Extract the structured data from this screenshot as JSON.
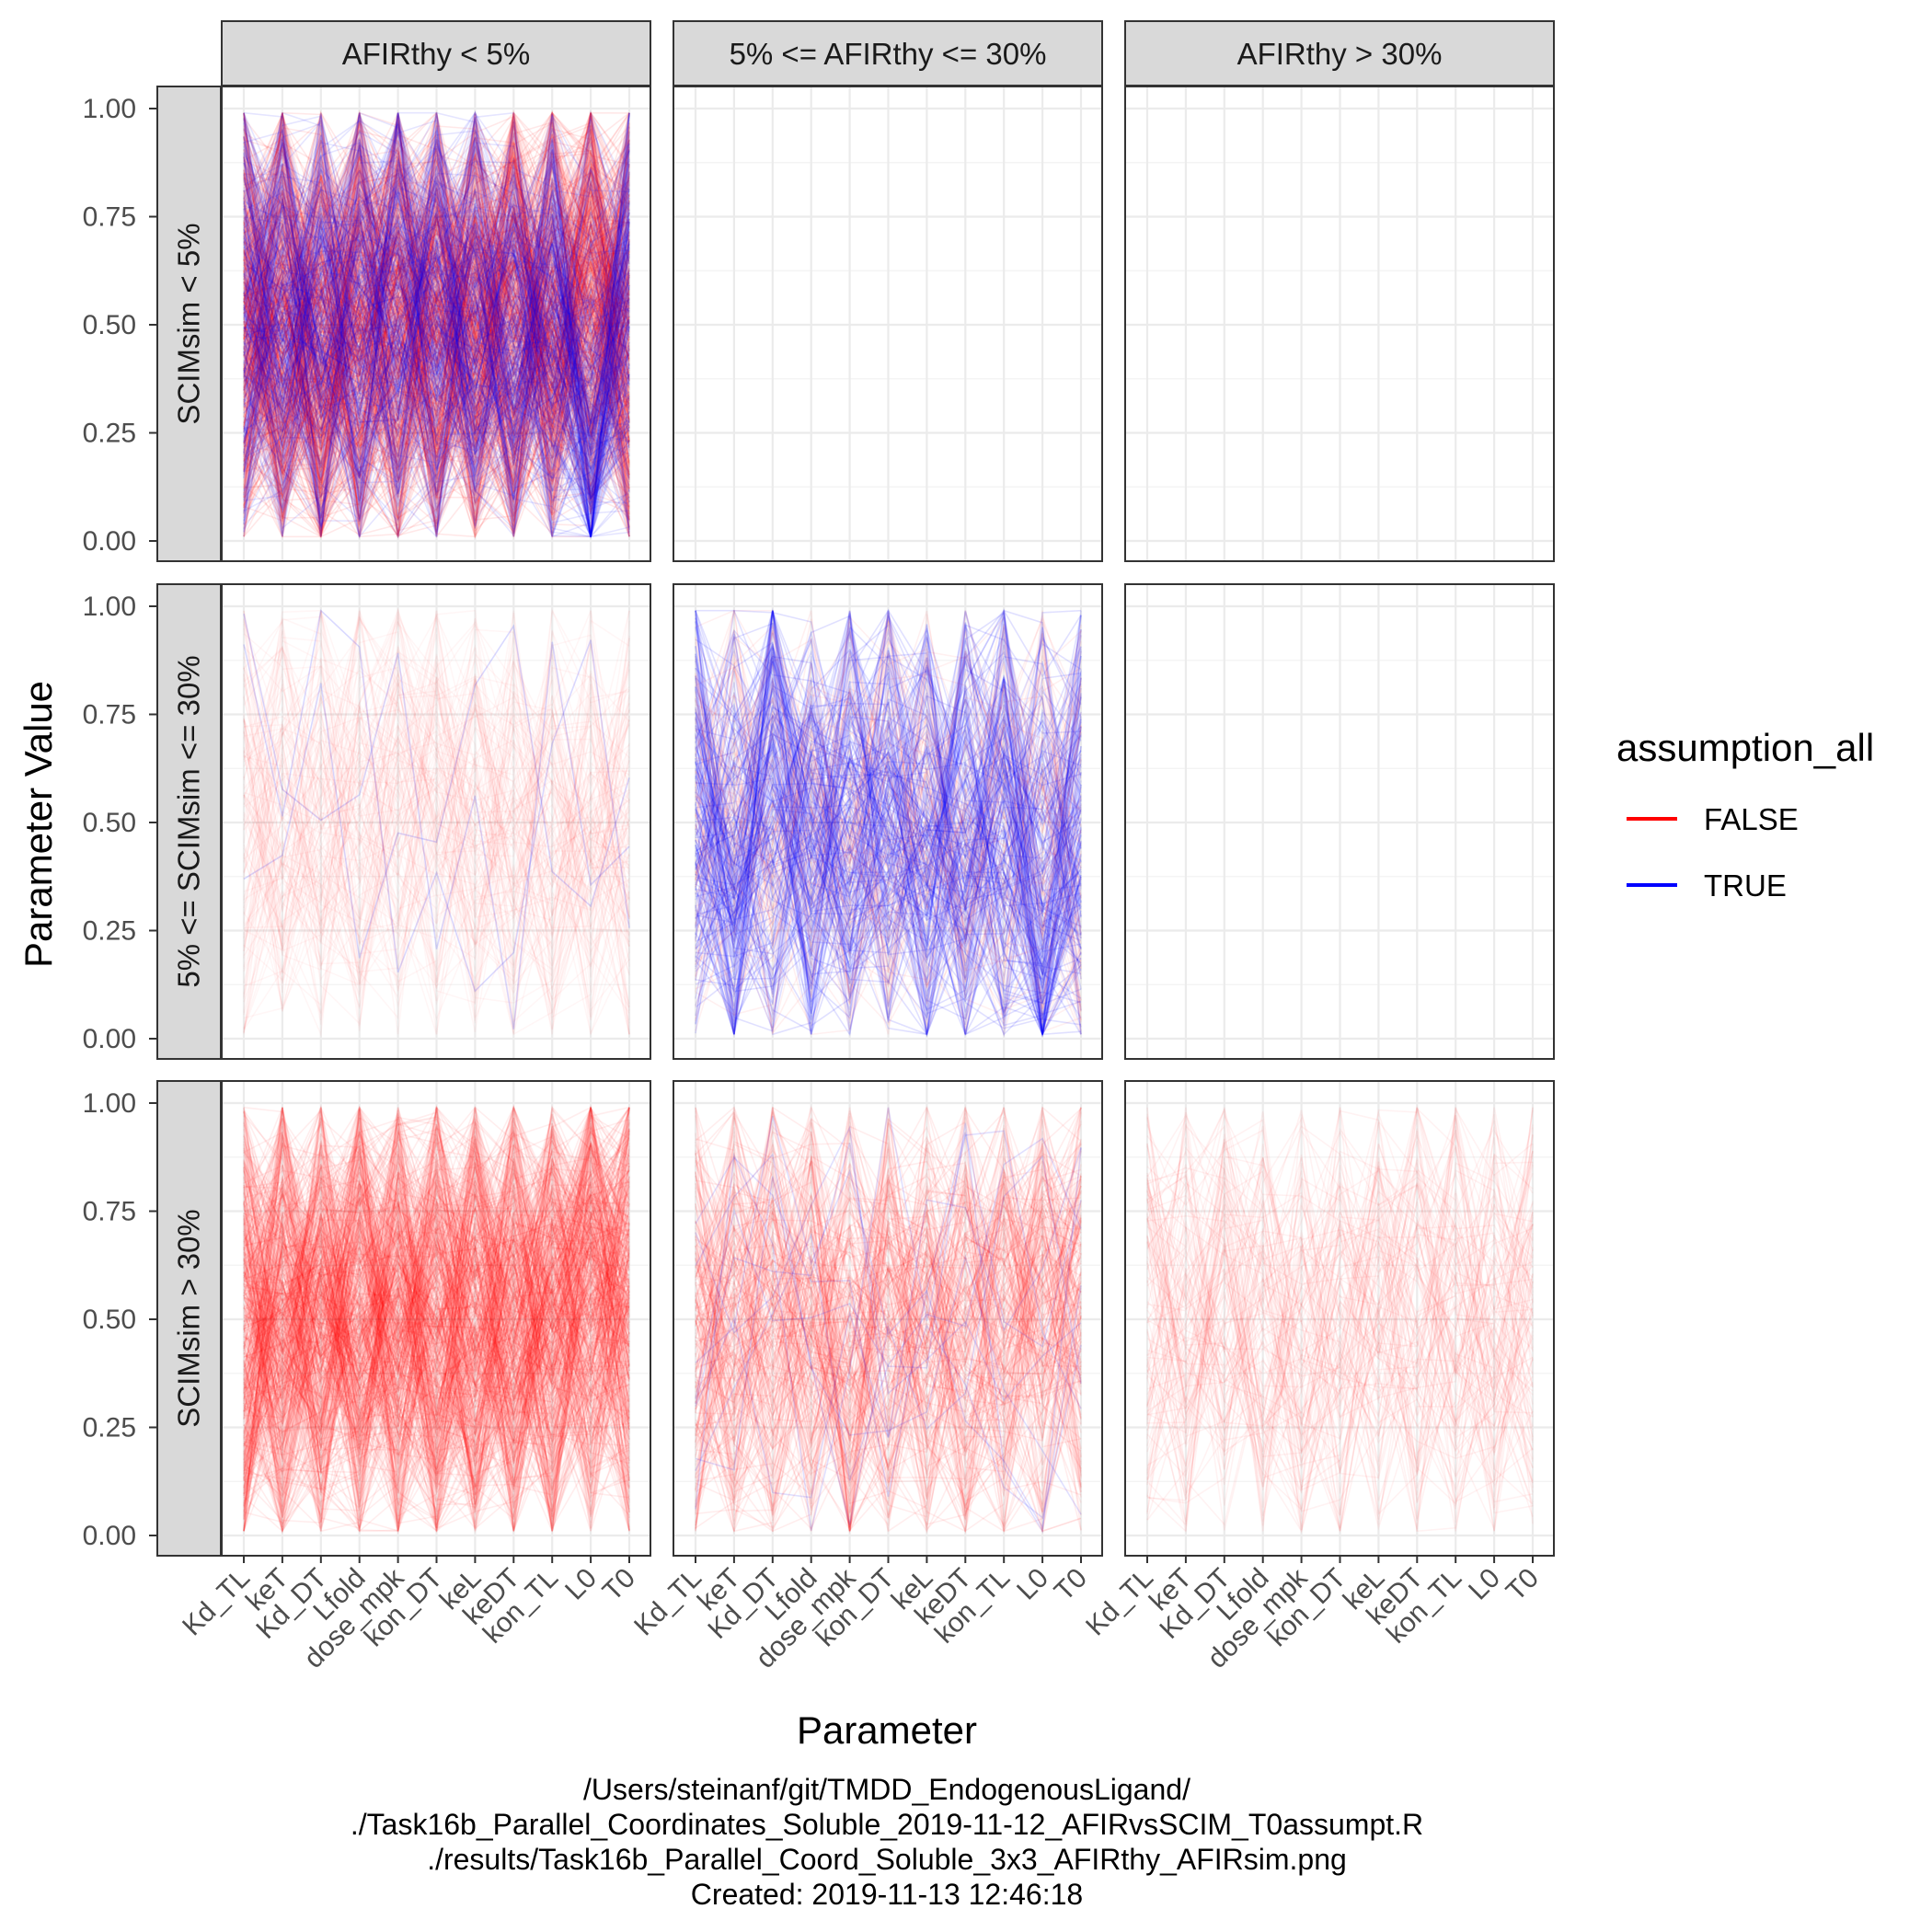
{
  "chart_data": {
    "type": "parallel_coordinates",
    "facet_cols": [
      "AFIRthy < 5%",
      "5% <= AFIRthy <= 30%",
      "AFIRthy > 30%"
    ],
    "facet_rows": [
      "SCIMsim < 5%",
      "5% <= SCIMsim <= 30%",
      "SCIMsim > 30%"
    ],
    "parameters": [
      "Kd_TL",
      "keT",
      "Kd_DT",
      "Lfold",
      "dose_mpk",
      "kon_DT",
      "keL",
      "keDT",
      "kon_TL",
      "L0",
      "T0"
    ],
    "ylim": [
      0,
      1
    ],
    "y_ticks": [
      0.0,
      0.25,
      0.5,
      0.75,
      1.0
    ],
    "y_tick_labels": [
      "0.00",
      "0.25",
      "0.50",
      "0.75",
      "1.00"
    ],
    "xlabel": "Parameter",
    "ylabel": "Parameter Value",
    "legend": {
      "title": "assumption_all",
      "position": "right",
      "entries": [
        {
          "label": "FALSE",
          "color": "#ff0000"
        },
        {
          "label": "TRUE",
          "color": "#0000ff"
        }
      ]
    },
    "panels": [
      {
        "row": 0,
        "col": 0,
        "false_lines": 520,
        "true_lines": 260,
        "false_alpha": 0.09,
        "true_alpha": 0.1,
        "false_center": [
          0.5,
          0.5,
          0.45,
          0.5,
          0.5,
          0.5,
          0.5,
          0.5,
          0.5,
          0.62,
          0.5
        ],
        "true_center": [
          0.55,
          0.5,
          0.5,
          0.55,
          0.55,
          0.5,
          0.5,
          0.5,
          0.45,
          0.2,
          0.6
        ]
      },
      {
        "row": 0,
        "col": 1,
        "false_lines": 0,
        "true_lines": 0
      },
      {
        "row": 0,
        "col": 2,
        "false_lines": 0,
        "true_lines": 0
      },
      {
        "row": 1,
        "col": 0,
        "false_lines": 140,
        "true_lines": 3,
        "false_alpha": 0.035,
        "true_alpha": 0.15,
        "false_center": [
          0.5,
          0.5,
          0.5,
          0.5,
          0.5,
          0.5,
          0.5,
          0.5,
          0.5,
          0.5,
          0.5
        ],
        "true_center": [
          0.5,
          0.5,
          0.55,
          0.5,
          0.5,
          0.5,
          0.55,
          0.55,
          0.55,
          0.3,
          0.5
        ]
      },
      {
        "row": 1,
        "col": 1,
        "false_lines": 110,
        "true_lines": 180,
        "false_alpha": 0.06,
        "true_alpha": 0.12,
        "false_center": [
          0.5,
          0.5,
          0.5,
          0.5,
          0.45,
          0.5,
          0.5,
          0.5,
          0.5,
          0.4,
          0.4
        ],
        "true_center": [
          0.6,
          0.3,
          0.7,
          0.45,
          0.45,
          0.55,
          0.4,
          0.45,
          0.5,
          0.15,
          0.45
        ]
      },
      {
        "row": 1,
        "col": 2,
        "false_lines": 0,
        "true_lines": 0
      },
      {
        "row": 2,
        "col": 0,
        "false_lines": 500,
        "true_lines": 0,
        "false_alpha": 0.07,
        "false_center": [
          0.45,
          0.5,
          0.5,
          0.5,
          0.47,
          0.5,
          0.5,
          0.5,
          0.5,
          0.62,
          0.6
        ]
      },
      {
        "row": 2,
        "col": 1,
        "false_lines": 220,
        "true_lines": 10,
        "false_alpha": 0.07,
        "true_alpha": 0.12,
        "false_center": [
          0.45,
          0.45,
          0.5,
          0.5,
          0.35,
          0.5,
          0.5,
          0.5,
          0.5,
          0.55,
          0.55
        ],
        "true_center": [
          0.45,
          0.4,
          0.55,
          0.5,
          0.4,
          0.5,
          0.6,
          0.65,
          0.55,
          0.3,
          0.5
        ]
      },
      {
        "row": 2,
        "col": 2,
        "false_lines": 120,
        "true_lines": 0,
        "false_alpha": 0.05,
        "false_center": [
          0.5,
          0.5,
          0.5,
          0.5,
          0.35,
          0.5,
          0.5,
          0.5,
          0.5,
          0.5,
          0.5
        ]
      }
    ]
  },
  "caption": [
    "/Users/steinanf/git/TMDD_EndogenousLigand/",
    "./Task16b_Parallel_Coordinates_Soluble_2019-11-12_AFIRvsSCIM_T0assumpt.R",
    "./results/Task16b_Parallel_Coord_Soluble_3x3_AFIRthy_AFIRsim.png",
    "Created: 2019-11-13 12:46:18"
  ],
  "colors": {
    "false_series": "#ff0000",
    "true_series": "#0000ff",
    "strip_fill": "#d9d9d9",
    "grid_major": "#ebebeb",
    "panel_border": "#333333"
  }
}
